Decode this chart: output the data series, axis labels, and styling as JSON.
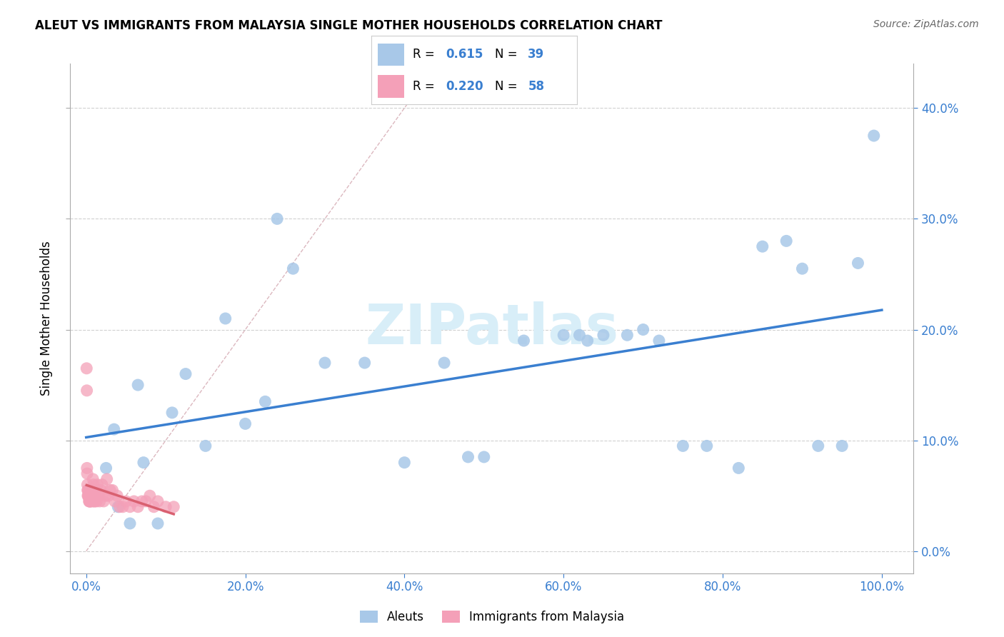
{
  "title": "ALEUT VS IMMIGRANTS FROM MALAYSIA SINGLE MOTHER HOUSEHOLDS CORRELATION CHART",
  "source": "Source: ZipAtlas.com",
  "ylabel_label": "Single Mother Households",
  "xlim": [
    -2,
    104
  ],
  "ylim": [
    -2,
    44
  ],
  "xlabel_vals": [
    0,
    20,
    40,
    60,
    80,
    100
  ],
  "ylabel_vals": [
    0,
    10,
    20,
    30,
    40
  ],
  "aleuts_color": "#a8c8e8",
  "malaysia_color": "#f4a0b8",
  "trendline_aleuts_color": "#3a7fd0",
  "trendline_malaysia_color": "#d96070",
  "diag_color": "#d8b0b8",
  "watermark_color": "#d8eef8",
  "tick_color": "#3a7fd0",
  "watermark": "ZIPatlas",
  "aleuts_R": "0.615",
  "aleuts_N": "39",
  "malaysia_R": "0.220",
  "malaysia_N": "58",
  "legend_R_N_color": "#3a7fd0",
  "aleuts_x": [
    2.5,
    4.0,
    5.5,
    7.2,
    9.0,
    10.8,
    12.5,
    15.0,
    17.5,
    20.0,
    22.5,
    26.0,
    30.0,
    35.0,
    40.0,
    45.0,
    50.0,
    55.0,
    60.0,
    63.0,
    65.0,
    68.0,
    70.0,
    72.0,
    75.0,
    78.0,
    82.0,
    85.0,
    88.0,
    90.0,
    92.0,
    95.0,
    97.0,
    99.0,
    3.5,
    6.5,
    24.0,
    48.0,
    62.0
  ],
  "aleuts_y": [
    7.5,
    4.0,
    2.5,
    8.0,
    2.5,
    12.5,
    16.0,
    9.5,
    21.0,
    11.5,
    13.5,
    25.5,
    17.0,
    17.0,
    8.0,
    17.0,
    8.5,
    19.0,
    19.5,
    19.0,
    19.5,
    19.5,
    20.0,
    19.0,
    9.5,
    9.5,
    7.5,
    27.5,
    28.0,
    25.5,
    9.5,
    9.5,
    26.0,
    37.5,
    11.0,
    15.0,
    30.0,
    8.5,
    19.5
  ],
  "malaysia_x": [
    0.05,
    0.08,
    0.1,
    0.12,
    0.15,
    0.18,
    0.2,
    0.22,
    0.25,
    0.28,
    0.3,
    0.33,
    0.36,
    0.4,
    0.43,
    0.46,
    0.5,
    0.55,
    0.6,
    0.65,
    0.7,
    0.75,
    0.8,
    0.85,
    0.9,
    0.95,
    1.0,
    1.05,
    1.1,
    1.15,
    1.2,
    1.3,
    1.4,
    1.55,
    1.7,
    1.85,
    2.0,
    2.2,
    2.4,
    2.6,
    2.8,
    3.0,
    3.3,
    3.6,
    3.9,
    4.2,
    4.6,
    5.0,
    5.5,
    6.0,
    6.5,
    7.0,
    7.5,
    8.0,
    8.5,
    9.0,
    10.0,
    11.0
  ],
  "malaysia_y": [
    16.5,
    14.5,
    7.5,
    7.0,
    6.0,
    5.5,
    5.0,
    5.5,
    5.0,
    5.0,
    5.5,
    5.0,
    4.5,
    4.5,
    5.0,
    4.5,
    4.5,
    4.5,
    5.0,
    5.5,
    5.0,
    4.5,
    5.5,
    6.5,
    6.0,
    5.0,
    4.5,
    4.5,
    5.5,
    5.0,
    5.5,
    4.5,
    6.0,
    5.0,
    4.5,
    5.5,
    6.0,
    4.5,
    5.0,
    6.5,
    5.0,
    5.5,
    5.5,
    4.5,
    5.0,
    4.0,
    4.0,
    4.5,
    4.0,
    4.5,
    4.0,
    4.5,
    4.5,
    5.0,
    4.0,
    4.5,
    4.0,
    4.0
  ]
}
